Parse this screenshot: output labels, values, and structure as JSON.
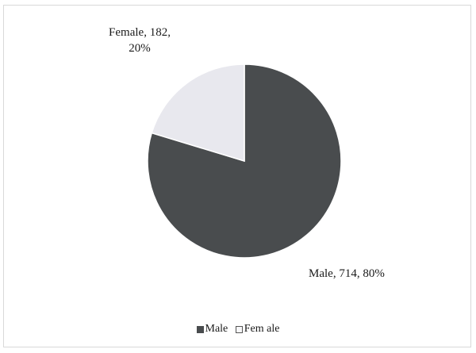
{
  "chart_data": {
    "type": "pie",
    "categories": [
      "Male",
      "Female"
    ],
    "values": [
      714,
      182
    ],
    "percents": [
      80,
      20
    ],
    "colors": [
      "#494c4e",
      "#e8e8ee"
    ],
    "stroke_color": "#ffffff",
    "data_labels": [
      {
        "lines": [
          "Male, 714,  80%"
        ]
      },
      {
        "lines": [
          "Female,  182,",
          "20%"
        ]
      }
    ],
    "legend": {
      "placement": "bottom",
      "items": [
        {
          "label": "Male",
          "color": "#494c4e"
        },
        {
          "label": "Fem ale",
          "color": "#e8e8ee"
        }
      ]
    }
  }
}
